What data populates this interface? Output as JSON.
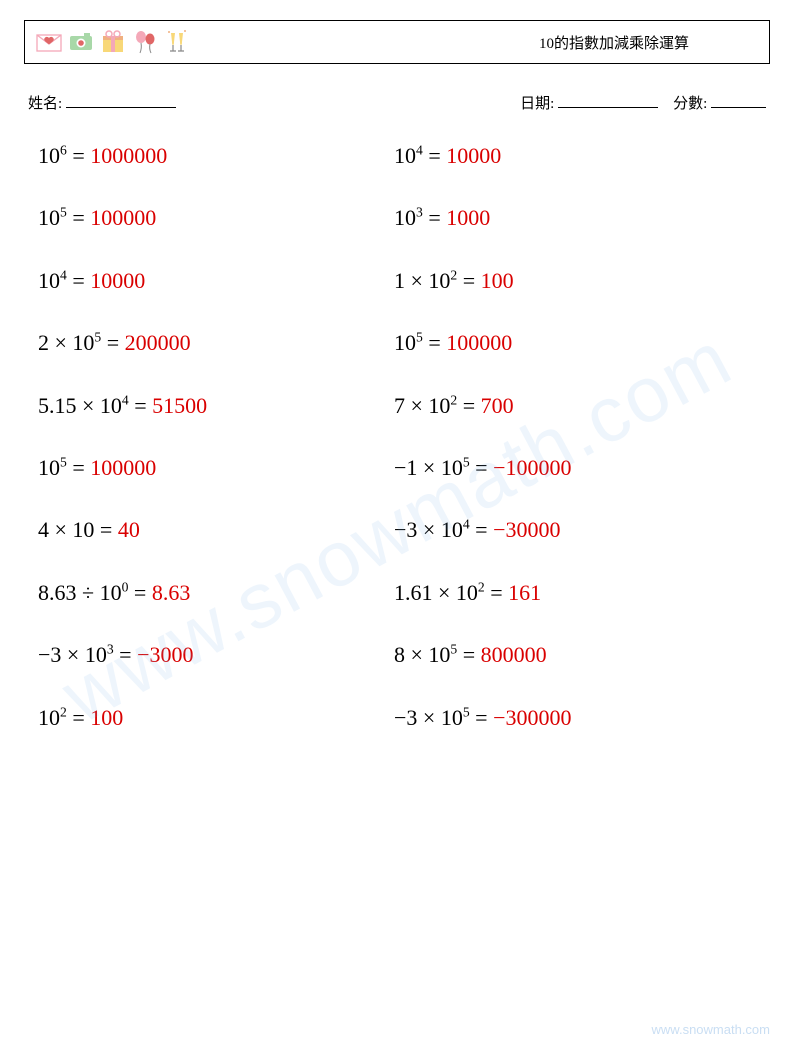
{
  "header": {
    "title": "10的指數加減乘除運算"
  },
  "info": {
    "name_label": "姓名:",
    "date_label": "日期:",
    "score_label": "分數:"
  },
  "answer_color": "#d90000",
  "text_color": "#000000",
  "problems_left": [
    {
      "coef": "",
      "op": "",
      "base": "10",
      "exp": "6",
      "ans": "1000000"
    },
    {
      "coef": "",
      "op": "",
      "base": "10",
      "exp": "5",
      "ans": "100000"
    },
    {
      "coef": "",
      "op": "",
      "base": "10",
      "exp": "4",
      "ans": "10000"
    },
    {
      "coef": "2",
      "op": "×",
      "base": "10",
      "exp": "5",
      "ans": "200000"
    },
    {
      "coef": "5.15",
      "op": "×",
      "base": "10",
      "exp": "4",
      "ans": "51500"
    },
    {
      "coef": "",
      "op": "",
      "base": "10",
      "exp": "5",
      "ans": "100000"
    },
    {
      "coef": "4",
      "op": "×",
      "base": "10",
      "exp": "",
      "ans": "40"
    },
    {
      "coef": "8.63",
      "op": "÷",
      "base": "10",
      "exp": "0",
      "ans": "8.63"
    },
    {
      "coef": "−3",
      "op": "×",
      "base": "10",
      "exp": "3",
      "ans": "−3000"
    },
    {
      "coef": "",
      "op": "",
      "base": "10",
      "exp": "2",
      "ans": "100"
    }
  ],
  "problems_right": [
    {
      "coef": "",
      "op": "",
      "base": "10",
      "exp": "4",
      "ans": "10000"
    },
    {
      "coef": "",
      "op": "",
      "base": "10",
      "exp": "3",
      "ans": "1000"
    },
    {
      "coef": "1",
      "op": "×",
      "base": "10",
      "exp": "2",
      "ans": "100"
    },
    {
      "coef": "",
      "op": "",
      "base": "10",
      "exp": "5",
      "ans": "100000"
    },
    {
      "coef": "7",
      "op": "×",
      "base": "10",
      "exp": "2",
      "ans": "700"
    },
    {
      "coef": "−1",
      "op": "×",
      "base": "10",
      "exp": "5",
      "ans": "−100000"
    },
    {
      "coef": "−3",
      "op": "×",
      "base": "10",
      "exp": "4",
      "ans": "−30000"
    },
    {
      "coef": "1.61",
      "op": "×",
      "base": "10",
      "exp": "2",
      "ans": "161"
    },
    {
      "coef": "8",
      "op": "×",
      "base": "10",
      "exp": "5",
      "ans": "800000"
    },
    {
      "coef": "−3",
      "op": "×",
      "base": "10",
      "exp": "5",
      "ans": "−300000"
    }
  ],
  "watermark": "www.snowmath.com",
  "footer_url": "www.snowmath.com",
  "decor_icons": [
    "envelope-heart",
    "camera",
    "gift-box",
    "balloons",
    "champagne-glasses"
  ],
  "decor_colors": {
    "pink": "#f4a8b8",
    "red": "#e06666",
    "yellow": "#f8d878",
    "green": "#a8d8a8",
    "blue": "#a8c8e8",
    "orange": "#f0b080"
  }
}
